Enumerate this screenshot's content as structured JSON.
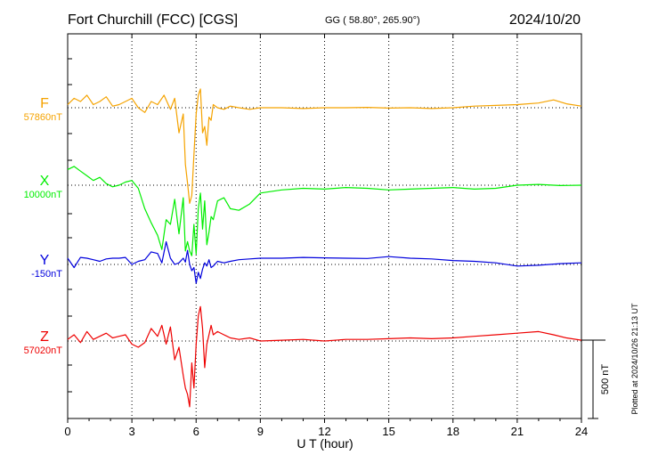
{
  "chart_data": {
    "type": "line",
    "title": "Fort Churchill (FCC)  [CGS]",
    "coordinates": "GG ( 58.80°, 265.90°)",
    "date": "2024/10/20",
    "xlabel": "U T (hour)",
    "xlim": [
      0,
      24
    ],
    "x_ticks": [
      "0",
      "3",
      "6",
      "9",
      "12",
      "15",
      "18",
      "21",
      "24"
    ],
    "grid": true,
    "scale_bar_label": "500 nT",
    "scale_bar_nT": 500,
    "plotted_note": "Plotted at 2024/10/26 21:13 UT",
    "series": [
      {
        "name": "F",
        "baseline_label": "57860nT",
        "baseline": 57860,
        "color": "#f5a300",
        "x": [
          0,
          0.3,
          0.6,
          0.9,
          1.2,
          1.5,
          1.8,
          2.1,
          2.4,
          2.7,
          3.0,
          3.3,
          3.6,
          3.9,
          4.2,
          4.5,
          4.8,
          5.0,
          5.2,
          5.4,
          5.5,
          5.6,
          5.7,
          5.8,
          5.9,
          6.0,
          6.1,
          6.2,
          6.3,
          6.4,
          6.5,
          6.6,
          6.7,
          6.8,
          7.0,
          7.3,
          7.6,
          8.0,
          8.5,
          9,
          10,
          11,
          12,
          13,
          14,
          15,
          16,
          17,
          18,
          19,
          20,
          21,
          22,
          22.7,
          23.3,
          24
        ],
        "values": [
          57880,
          57920,
          57900,
          57940,
          57880,
          57900,
          57930,
          57870,
          57880,
          57900,
          57920,
          57860,
          57830,
          57900,
          57880,
          57940,
          57850,
          57920,
          57700,
          57820,
          57500,
          57380,
          57250,
          57300,
          57560,
          57820,
          57940,
          57980,
          57700,
          57740,
          57620,
          57800,
          57780,
          57880,
          57860,
          57850,
          57870,
          57860,
          57850,
          57860,
          57860,
          57855,
          57860,
          57860,
          57862,
          57858,
          57860,
          57855,
          57860,
          57870,
          57875,
          57880,
          57890,
          57910,
          57885,
          57870
        ]
      },
      {
        "name": "X",
        "baseline_label": "10000nT",
        "baseline": 10000,
        "color": "#00ee00",
        "x": [
          0,
          0.3,
          0.6,
          0.9,
          1.2,
          1.5,
          1.8,
          2.1,
          2.4,
          2.7,
          3.0,
          3.3,
          3.6,
          3.9,
          4.2,
          4.4,
          4.6,
          4.8,
          5.0,
          5.2,
          5.4,
          5.5,
          5.6,
          5.7,
          5.8,
          5.9,
          6.0,
          6.1,
          6.2,
          6.3,
          6.4,
          6.5,
          6.6,
          6.7,
          6.8,
          7.0,
          7.3,
          7.6,
          8.0,
          8.5,
          9,
          10,
          11,
          12,
          13,
          14,
          15,
          16,
          17,
          18,
          19,
          20,
          21,
          22,
          23,
          24
        ],
        "values": [
          10100,
          10120,
          10090,
          10060,
          10030,
          10050,
          10010,
          9990,
          10000,
          10020,
          10030,
          9980,
          9850,
          9760,
          9680,
          9590,
          9780,
          9750,
          9910,
          9690,
          9920,
          9580,
          9640,
          9580,
          9550,
          9750,
          9560,
          9850,
          9950,
          9720,
          9900,
          9620,
          9700,
          9800,
          9780,
          9900,
          9920,
          9850,
          9840,
          9880,
          9950,
          9970,
          9980,
          9975,
          9985,
          9980,
          9970,
          9975,
          9980,
          9985,
          9975,
          9980,
          10000,
          10005,
          9998,
          10000
        ]
      },
      {
        "name": "Y",
        "baseline_label": "-150nT",
        "baseline": -150,
        "color": "#0000dd",
        "x": [
          0,
          0.3,
          0.6,
          0.9,
          1.2,
          1.5,
          1.8,
          2.1,
          2.4,
          2.7,
          3.0,
          3.3,
          3.6,
          3.9,
          4.2,
          4.4,
          4.6,
          4.8,
          5.0,
          5.2,
          5.4,
          5.5,
          5.6,
          5.7,
          5.8,
          5.9,
          6.0,
          6.1,
          6.2,
          6.3,
          6.4,
          6.5,
          6.6,
          6.7,
          6.8,
          7.0,
          7.3,
          7.6,
          8.0,
          8.5,
          9,
          10,
          11,
          12,
          13,
          14,
          15,
          16,
          17,
          18,
          19,
          20,
          21,
          22,
          23,
          24
        ],
        "values": [
          -110,
          -170,
          -105,
          -110,
          -120,
          -130,
          -115,
          -110,
          -110,
          -105,
          -150,
          -130,
          -120,
          -70,
          -80,
          -140,
          -5,
          -110,
          -150,
          -140,
          -110,
          -135,
          -60,
          -150,
          -190,
          -170,
          -270,
          -200,
          -240,
          -180,
          -140,
          -160,
          -120,
          -170,
          -160,
          -130,
          -140,
          -130,
          -120,
          -115,
          -110,
          -110,
          -105,
          -108,
          -110,
          -112,
          -100,
          -110,
          -115,
          -125,
          -130,
          -140,
          -160,
          -155,
          -145,
          -140
        ]
      },
      {
        "name": "Z",
        "baseline_label": "57020nT",
        "baseline": 57020,
        "color": "#ee0000",
        "x": [
          0,
          0.3,
          0.6,
          0.9,
          1.2,
          1.5,
          1.8,
          2.1,
          2.4,
          2.7,
          3.0,
          3.3,
          3.6,
          3.9,
          4.2,
          4.4,
          4.6,
          4.8,
          5.0,
          5.2,
          5.4,
          5.5,
          5.6,
          5.7,
          5.8,
          5.9,
          6.0,
          6.1,
          6.2,
          6.3,
          6.4,
          6.5,
          6.6,
          6.7,
          6.8,
          7.0,
          7.3,
          7.6,
          8.0,
          8.5,
          9,
          10,
          11,
          12,
          13,
          14,
          15,
          16,
          17,
          18,
          19,
          20,
          21,
          22,
          22.7,
          23.3,
          24
        ],
        "values": [
          57030,
          57060,
          57010,
          57080,
          57030,
          57050,
          57070,
          57040,
          57050,
          57060,
          57000,
          56980,
          57010,
          57100,
          57050,
          57120,
          57000,
          57110,
          56900,
          56980,
          56800,
          56720,
          56680,
          56600,
          56880,
          56720,
          57000,
          57180,
          57240,
          57100,
          56850,
          57000,
          57060,
          57120,
          57060,
          57080,
          57060,
          57040,
          57030,
          57040,
          57020,
          57025,
          57030,
          57020,
          57030,
          57030,
          57035,
          57040,
          57035,
          57040,
          57050,
          57060,
          57070,
          57080,
          57060,
          57040,
          57025
        ]
      }
    ]
  }
}
